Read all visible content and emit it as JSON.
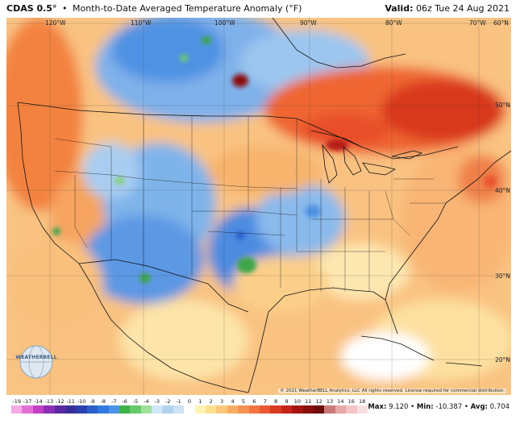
{
  "header": {
    "product": "CDAS 0.5°",
    "separator": "•",
    "title": "Month-to-Date Averaged Temperature Anomaly (°F)",
    "valid_label": "Valid:",
    "valid_value": "06z Tue 24 Aug 2021"
  },
  "map": {
    "lon_labels": [
      "120°W",
      "110°W",
      "100°W",
      "90°W",
      "80°W",
      "70°W"
    ],
    "lat_labels": [
      "60°N",
      "50°N",
      "40°N",
      "30°N",
      "20°N"
    ],
    "copyright": "© 2021 WeatherBELL Analytics, LLC All rights reserved. License required for commercial distribution.",
    "logo_text": "WEATHERBELL"
  },
  "legend": {
    "ticks": [
      "-19",
      "-17",
      "-14",
      "-13",
      "-12",
      "-11",
      "-10",
      "-9",
      "-8",
      "-7",
      "-6",
      "-5",
      "-4",
      "-3",
      "-2",
      "-1",
      "0",
      "1",
      "2",
      "3",
      "4",
      "5",
      "6",
      "7",
      "8",
      "9",
      "10",
      "11",
      "12",
      "13",
      "14",
      "16",
      "18"
    ],
    "colors": [
      "#f7a9e6",
      "#e26fd6",
      "#c43fc3",
      "#8b2fb5",
      "#5b2a9f",
      "#3a2f9a",
      "#2b3fae",
      "#2a5fcb",
      "#2f79e0",
      "#4b94ea",
      "#3db34a",
      "#67c96a",
      "#9fe09c",
      "#cfe8f7",
      "#b0d4f2",
      "#cfe3f6",
      "#ffffff",
      "#fff3b5",
      "#fde090",
      "#fcc77a",
      "#f9ad64",
      "#f69252",
      "#f27540",
      "#ea5730",
      "#d93a22",
      "#c42418",
      "#a51511",
      "#88100d",
      "#6e0e0b",
      "#c97a7a",
      "#e8a8a8",
      "#f2c4c4",
      "#f8e0e0"
    ],
    "stats": [
      {
        "label": "Max:",
        "value": "9.120"
      },
      {
        "label": "Min:",
        "value": "-10.387"
      },
      {
        "label": "Avg:",
        "value": "0.704"
      }
    ]
  }
}
